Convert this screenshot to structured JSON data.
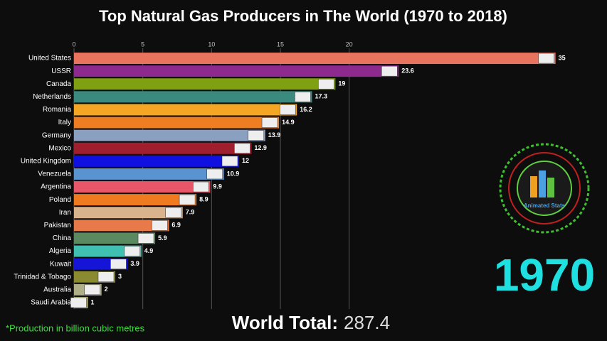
{
  "chart_data": {
    "type": "bar",
    "orientation": "horizontal",
    "title": "Top Natural Gas Producers in The World (1970 to 2018)",
    "categories": [
      "United States",
      "USSR",
      "Canada",
      "Netherlands",
      "Romania",
      "Italy",
      "Germany",
      "Mexico",
      "United Kingdom",
      "Venezuela",
      "Argentina",
      "Poland",
      "Iran",
      "Pakistan",
      "China",
      "Algeria",
      "Kuwait",
      "Trinidad & Tobago",
      "Australia",
      "Saudi Arabia"
    ],
    "values": [
      35,
      23.6,
      19,
      17.3,
      16.2,
      14.9,
      13.9,
      12.9,
      12,
      10.9,
      9.9,
      8.9,
      7.9,
      6.9,
      5.9,
      4.9,
      3.9,
      3,
      2,
      1
    ],
    "colors": [
      "#e8735f",
      "#8e2a8e",
      "#7fa010",
      "#3a8a80",
      "#f5a623",
      "#ef7d22",
      "#8aa0c0",
      "#a01f2f",
      "#1010e0",
      "#5a94d0",
      "#e8566a",
      "#f07a20",
      "#d9b38c",
      "#e87a4a",
      "#5b8a60",
      "#40c0b0",
      "#1515d8",
      "#8a8a30",
      "#b0b088",
      "#c8c880"
    ],
    "xlim": [
      0,
      36
    ],
    "xticks": [
      0,
      5,
      10,
      15,
      20
    ],
    "grid": true,
    "year": "1970",
    "total_label": "World Total:",
    "total_value": "287.4",
    "footnote": "*Production in billion cubic metres",
    "logo_text": "Animated Stats"
  }
}
